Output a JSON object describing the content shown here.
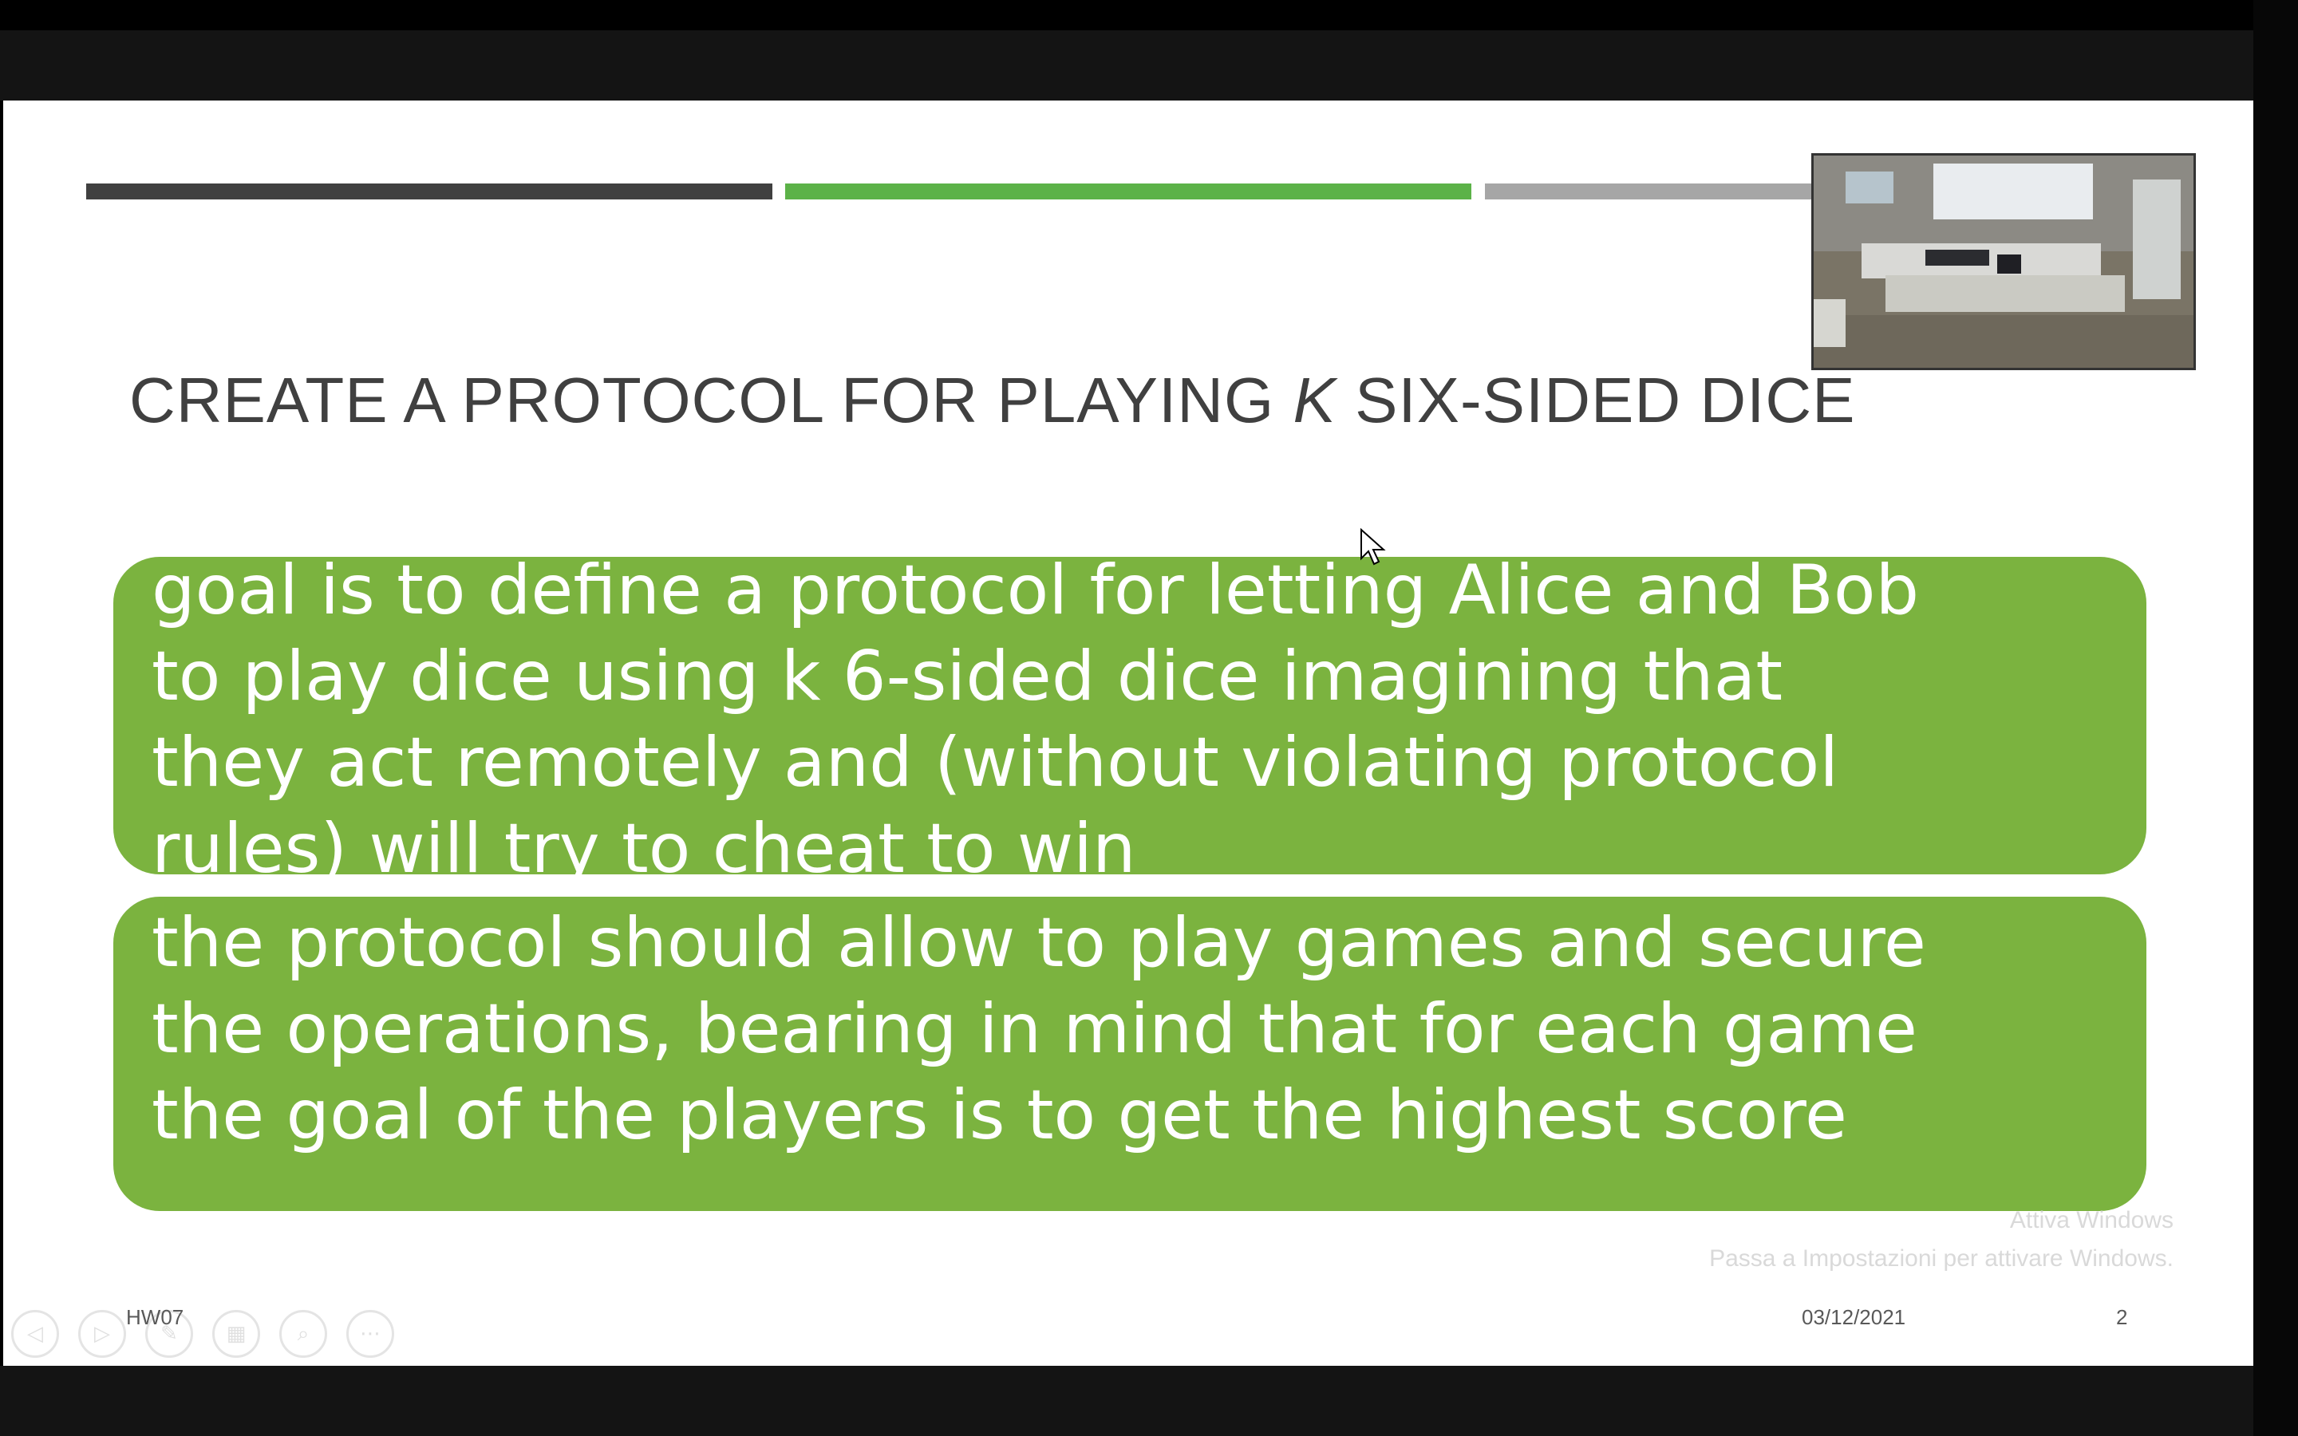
{
  "slide": {
    "title_before": "CREATE A PROTOCOL FOR PLAYING ",
    "title_k": "K",
    "title_after": " SIX-SIDED DICE",
    "box1_lines": [
      "goal is to define a protocol for letting Alice and Bob",
      "to play dice using k 6-sided dice imagining that",
      "they act remotely and (without violating protocol",
      "rules) will try to cheat to win"
    ],
    "box2_lines": [
      "the protocol should allow to play games and secure",
      "the operations, bearing in mind that for each game",
      "the goal of the players is to get the highest score"
    ],
    "footer_left": "HW07",
    "footer_date": "03/12/2021",
    "footer_page": "2"
  },
  "watermark": {
    "line1": "Attiva Windows",
    "line2": "Passa a Impostazioni per attivare Windows."
  },
  "nav_icons": [
    "previous-icon",
    "next-icon",
    "pen-icon",
    "slides-icon",
    "zoom-icon",
    "more-icon"
  ],
  "colors": {
    "accent_green": "#7bb33f",
    "bar_green": "#5cb248",
    "bar_dark": "#404040",
    "bar_gray": "#a6a6a6"
  }
}
